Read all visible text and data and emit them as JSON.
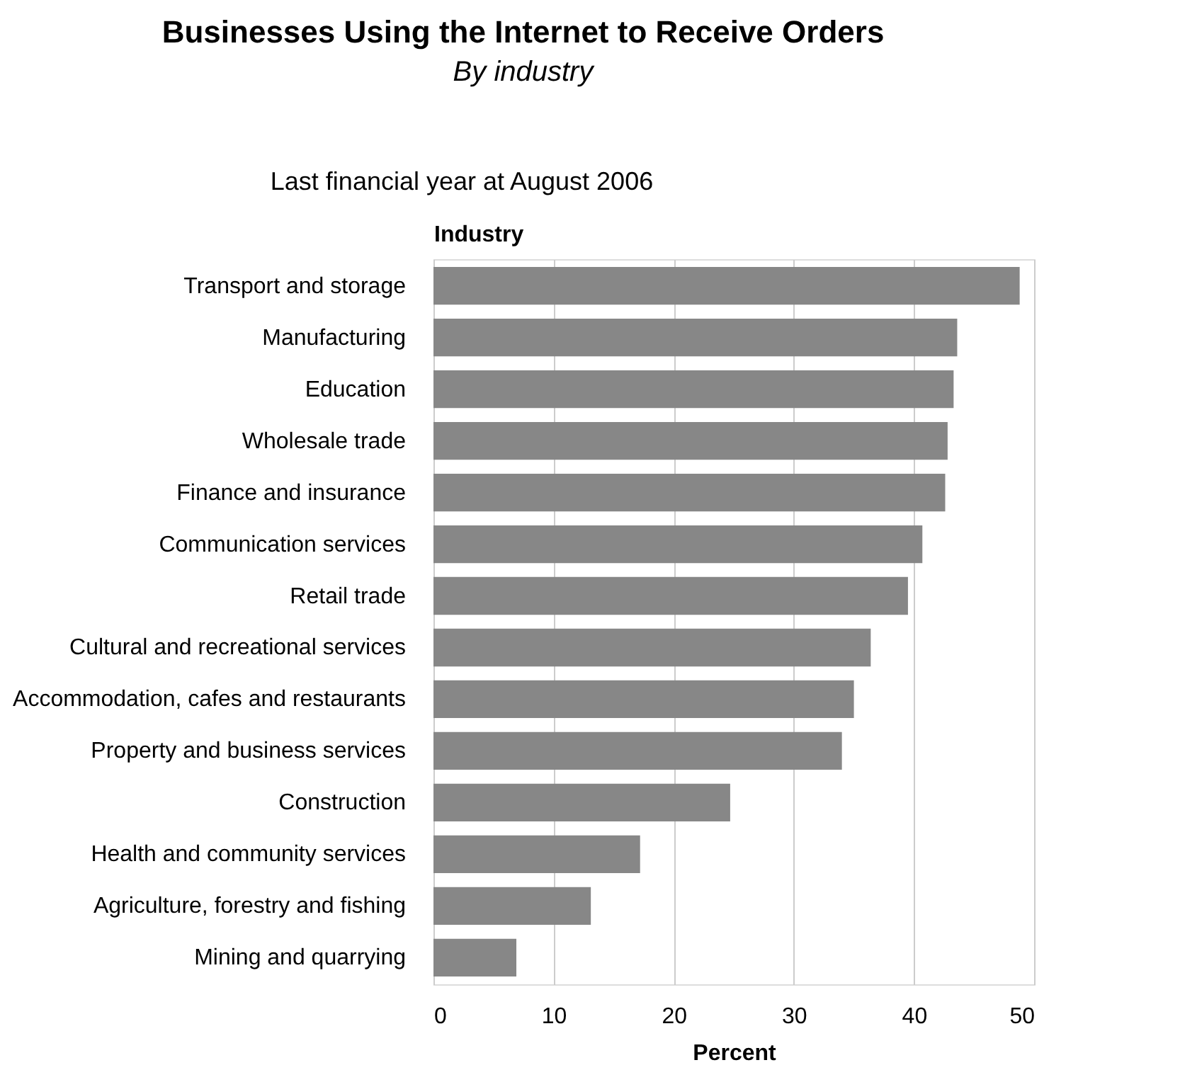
{
  "chart_data": {
    "type": "bar",
    "orientation": "horizontal",
    "title": "Businesses Using the Internet to Receive Orders",
    "subtitle": "By industry",
    "annotations": [
      "Last financial year at August 2006"
    ],
    "ylabel": "Industry",
    "xlabel": "Percent",
    "categories": [
      "Transport and storage",
      "Manufacturing",
      "Education",
      "Wholesale trade",
      "Finance and insurance",
      "Communication services",
      "Retail trade",
      "Cultural and recreational services",
      "Accommodation, cafes and restaurants",
      "Property and business services",
      "Construction",
      "Health and community services",
      "Agriculture, forestry and fishing",
      "Mining and quarrying"
    ],
    "values": [
      48.8,
      43.6,
      43.3,
      42.8,
      42.6,
      40.7,
      39.5,
      36.4,
      35.0,
      34.0,
      24.7,
      17.2,
      13.1,
      6.9
    ],
    "color": "#878787",
    "xlim": [
      0,
      50
    ],
    "xticks": [
      0,
      10,
      20,
      30,
      40,
      50
    ],
    "grid": "x"
  }
}
